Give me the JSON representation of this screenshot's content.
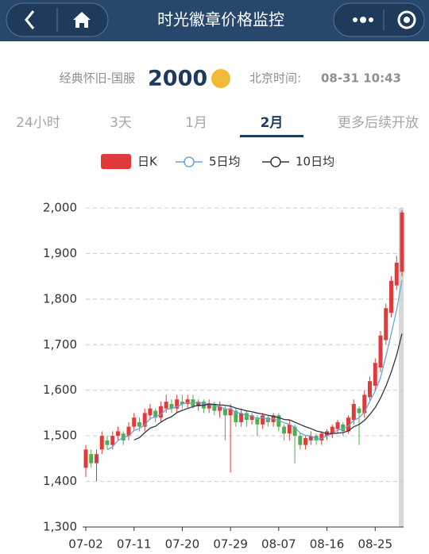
{
  "header": {
    "title": "时光徽章价格监控"
  },
  "info": {
    "server": "经典怀旧-国服",
    "price": "2000",
    "time_label": "北京时间:",
    "time": "08-31 10:43"
  },
  "tabs": {
    "items": [
      "24小时",
      "3天",
      "1月",
      "2月",
      "更多后续开放"
    ],
    "active": 3
  },
  "chart_data": {
    "type": "candlestick",
    "categories": [
      "07-02",
      null,
      null,
      null,
      null,
      null,
      null,
      null,
      null,
      "07-11",
      null,
      null,
      null,
      null,
      null,
      null,
      null,
      null,
      "07-20",
      null,
      null,
      null,
      null,
      null,
      null,
      null,
      null,
      "07-29",
      null,
      null,
      null,
      null,
      null,
      null,
      null,
      null,
      "08-07",
      null,
      null,
      null,
      null,
      null,
      null,
      null,
      null,
      "08-16",
      null,
      null,
      null,
      null,
      null,
      null,
      null,
      null,
      "08-25",
      null,
      null,
      null,
      null,
      null
    ],
    "candles": {
      "name": "日K",
      "color": "#e03a3a",
      "down_color": "#4caf50",
      "open": [
        1430,
        1460,
        1440,
        1470,
        1490,
        1480,
        1500,
        1505,
        1500,
        1520,
        1530,
        1520,
        1545,
        1555,
        1540,
        1560,
        1570,
        1560,
        1575,
        1570,
        1580,
        1565,
        1575,
        1560,
        1570,
        1555,
        1560,
        1545,
        1555,
        1530,
        1550,
        1535,
        1540,
        1525,
        1540,
        1530,
        1545,
        1520,
        1505,
        1520,
        1500,
        1480,
        1490,
        1500,
        1490,
        1500,
        1505,
        1515,
        1525,
        1510,
        1535,
        1560,
        1550,
        1585,
        1610,
        1650,
        1710,
        1770,
        1830,
        1860
      ],
      "close": [
        1470,
        1440,
        1460,
        1500,
        1480,
        1500,
        1510,
        1490,
        1520,
        1540,
        1520,
        1550,
        1560,
        1540,
        1565,
        1575,
        1560,
        1580,
        1570,
        1580,
        1565,
        1575,
        1560,
        1570,
        1555,
        1565,
        1545,
        1560,
        1530,
        1550,
        1535,
        1545,
        1525,
        1545,
        1530,
        1545,
        1520,
        1505,
        1525,
        1500,
        1480,
        1495,
        1500,
        1490,
        1505,
        1510,
        1520,
        1530,
        1510,
        1540,
        1570,
        1550,
        1590,
        1620,
        1660,
        1720,
        1780,
        1840,
        1880,
        1990
      ],
      "low": [
        1410,
        1430,
        1400,
        1460,
        1470,
        1470,
        1490,
        1480,
        1490,
        1510,
        1510,
        1510,
        1535,
        1530,
        1530,
        1550,
        1550,
        1550,
        1560,
        1560,
        1560,
        1555,
        1550,
        1550,
        1545,
        1540,
        1490,
        1420,
        1520,
        1520,
        1520,
        1525,
        1500,
        1515,
        1520,
        1520,
        1510,
        1490,
        1490,
        1440,
        1470,
        1470,
        1480,
        1480,
        1480,
        1490,
        1495,
        1505,
        1500,
        1505,
        1525,
        1480,
        1540,
        1575,
        1600,
        1640,
        1700,
        1760,
        1820,
        1850
      ],
      "high": [
        1480,
        1470,
        1470,
        1510,
        1500,
        1510,
        1520,
        1510,
        1530,
        1550,
        1540,
        1560,
        1570,
        1560,
        1575,
        1590,
        1580,
        1590,
        1590,
        1590,
        1590,
        1580,
        1580,
        1580,
        1575,
        1575,
        1565,
        1570,
        1560,
        1560,
        1555,
        1550,
        1545,
        1550,
        1545,
        1550,
        1550,
        1525,
        1535,
        1525,
        1505,
        1500,
        1510,
        1505,
        1510,
        1515,
        1525,
        1535,
        1530,
        1545,
        1580,
        1565,
        1600,
        1630,
        1670,
        1730,
        1790,
        1850,
        1895,
        1995
      ]
    },
    "series": [
      {
        "name": "5日均",
        "color": "#6ba4d8",
        "values": [
          null,
          null,
          null,
          null,
          1470,
          1476,
          1490,
          1496,
          1500,
          1512,
          1516,
          1524,
          1538,
          1542,
          1547,
          1558,
          1560,
          1564,
          1570,
          1573,
          1571,
          1574,
          1570,
          1570,
          1565,
          1565,
          1558,
          1559,
          1551,
          1550,
          1544,
          1544,
          1537,
          1540,
          1536,
          1538,
          1533,
          1529,
          1525,
          1519,
          1506,
          1501,
          1500,
          1493,
          1494,
          1500,
          1505,
          1513,
          1515,
          1522,
          1534,
          1540,
          1552,
          1576,
          1598,
          1628,
          1674,
          1724,
          1776,
          1842
        ]
      },
      {
        "name": "10日均",
        "color": "#2f3646",
        "values": [
          null,
          null,
          null,
          null,
          null,
          null,
          null,
          null,
          null,
          1491,
          1496,
          1507,
          1517,
          1521,
          1530,
          1537,
          1542,
          1551,
          1556,
          1560,
          1564,
          1567,
          1567,
          1570,
          1569,
          1568,
          1567,
          1565,
          1561,
          1558,
          1555,
          1553,
          1550,
          1548,
          1545,
          1543,
          1540,
          1536,
          1535,
          1530,
          1525,
          1520,
          1516,
          1511,
          1508,
          1505,
          1505,
          1506,
          1507,
          1511,
          1520,
          1525,
          1534,
          1547,
          1562,
          1583,
          1609,
          1640,
          1677,
          1724
        ]
      }
    ],
    "ylim": [
      1300,
      2000
    ],
    "yticks": [
      {
        "value": 1300,
        "label": "1,300"
      },
      {
        "value": 1400,
        "label": "1,400"
      },
      {
        "value": 1500,
        "label": "1,500"
      },
      {
        "value": 1600,
        "label": "1,600"
      },
      {
        "value": 1700,
        "label": "1,700"
      },
      {
        "value": 1800,
        "label": "1,800"
      },
      {
        "value": 1900,
        "label": "1,900"
      },
      {
        "value": 2000,
        "label": "2,000"
      }
    ],
    "grid": true
  }
}
